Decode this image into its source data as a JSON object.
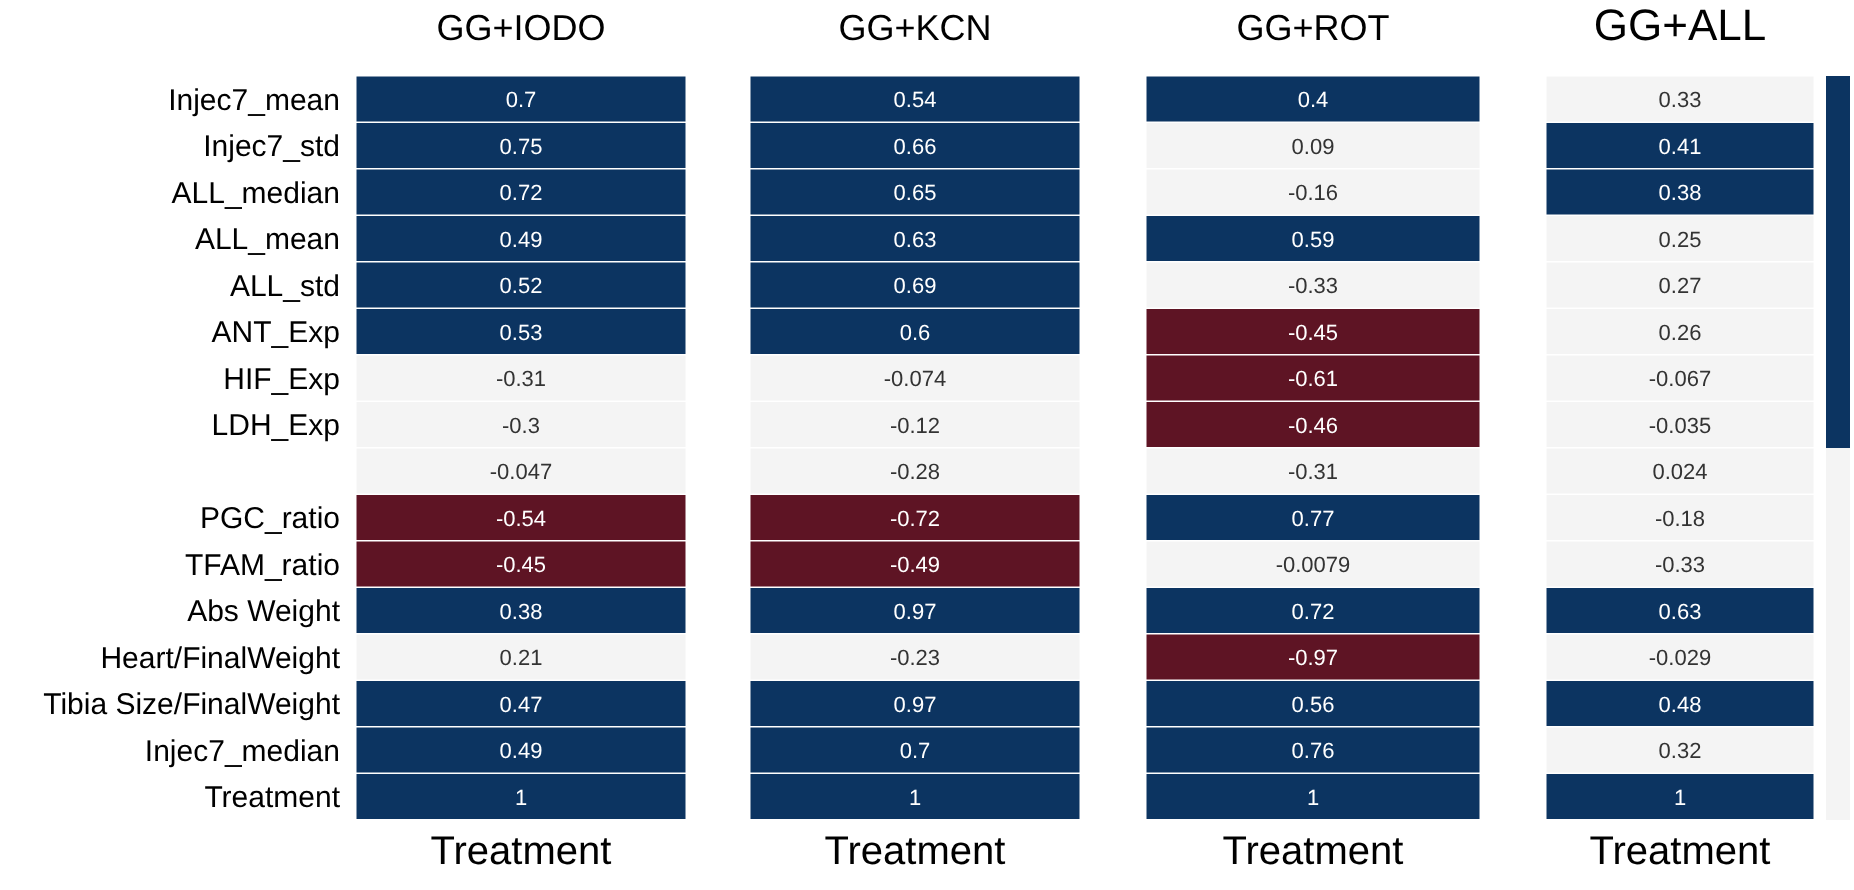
{
  "chart_data": {
    "type": "heatmap",
    "xlabel": "Treatment",
    "categories": [
      "GG+IODO",
      "GG+KCN",
      "GG+ROT",
      "GG+ALL"
    ],
    "y_categories": [
      "Injec7_mean",
      "Injec7_std",
      "ALL_median",
      "ALL_mean",
      "ALL_std",
      "ANT_Exp",
      "HIF_Exp",
      "LDH_Exp",
      null,
      "PGC_ratio",
      "TFAM_ratio",
      "Abs Weight",
      "Heart/FinalWeight",
      "Tibia Size/FinalWeight",
      "Injec7_median",
      "Treatment"
    ],
    "cells": [
      [
        0.7,
        0.54,
        0.4,
        0.33
      ],
      [
        0.75,
        0.66,
        0.09,
        0.41
      ],
      [
        0.72,
        0.65,
        -0.16,
        0.38
      ],
      [
        0.49,
        0.63,
        0.59,
        0.25
      ],
      [
        0.52,
        0.69,
        -0.33,
        0.27
      ],
      [
        0.53,
        0.6,
        -0.45,
        0.26
      ],
      [
        -0.31,
        -0.074,
        -0.61,
        -0.067
      ],
      [
        -0.3,
        -0.12,
        -0.46,
        -0.035
      ],
      [
        -0.047,
        -0.28,
        -0.31,
        0.024
      ],
      [
        -0.54,
        -0.72,
        0.77,
        -0.18
      ],
      [
        -0.45,
        -0.49,
        -0.0079,
        -0.33
      ],
      [
        0.38,
        0.97,
        0.72,
        0.63
      ],
      [
        0.21,
        -0.23,
        -0.97,
        -0.029
      ],
      [
        0.47,
        0.97,
        0.56,
        0.48
      ],
      [
        0.49,
        0.7,
        0.76,
        0.32
      ],
      [
        1,
        1,
        1,
        1
      ]
    ],
    "colors": [
      "#0c3461",
      "#0c3461",
      "#0c3461",
      "#f4f4f4",
      "#0c3461",
      "#0c3461",
      "#f4f4f4",
      "#0c3461",
      "#0c3461",
      "#0c3461",
      "#f4f4f4",
      "#0c3461",
      "#0c3461",
      "#0c3461",
      "#0c3461",
      "#f4f4f4",
      "#0c3461",
      "#0c3461",
      "#f4f4f4",
      "#f4f4f4",
      "#0c3461",
      "#0c3461",
      "#5e1424",
      "#f4f4f4",
      "#f4f4f4",
      "#f4f4f4",
      "#5e1424",
      "#f4f4f4",
      "#f4f4f4",
      "#f4f4f4",
      "#5e1424",
      "#f4f4f4",
      "#f4f4f4",
      "#f4f4f4",
      "#f4f4f4",
      "#f4f4f4",
      "#5e1424",
      "#5e1424",
      "#0c3461",
      "#f4f4f4",
      "#5e1424",
      "#5e1424",
      "#f4f4f4",
      "#f4f4f4",
      "#0c3461",
      "#0c3461",
      "#0c3461",
      "#0c3461",
      "#f4f4f4",
      "#f4f4f4",
      "#5e1424",
      "#f4f4f4",
      "#0c3461",
      "#0c3461",
      "#0c3461",
      "#0c3461",
      "#0c3461",
      "#0c3461",
      "#0c3461",
      "#f4f4f4",
      "#0c3461",
      "#0c3461",
      "#0c3461",
      "#0c3461"
    ],
    "data_labels": true
  }
}
